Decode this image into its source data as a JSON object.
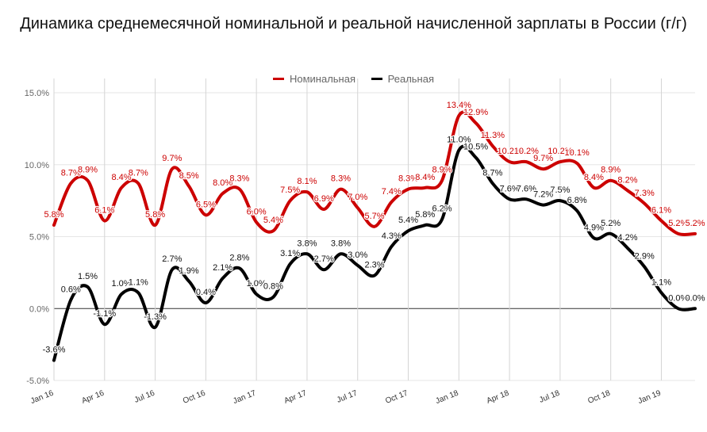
{
  "chart_data": {
    "type": "line",
    "title": "Динамика среднемесячной номинальной и реальной начисленной зарплаты в России (г/г)",
    "xlabel": "",
    "ylabel": "",
    "ylim": [
      -5,
      15
    ],
    "yticks": [
      "15.0%",
      "10.0%",
      "5.0%",
      "0.0%",
      "-5.0%"
    ],
    "ytick_values": [
      15,
      10,
      5,
      0,
      -5
    ],
    "x_tick_labels": [
      "Jan 16",
      "Apr 16",
      "Jul 16",
      "Oct 16",
      "Jan 17",
      "Apr 17",
      "Jul 17",
      "Oct 17",
      "Jan 18",
      "Apr 18",
      "Jul 18",
      "Oct 18",
      "Jan 19"
    ],
    "x_tick_indices": [
      0,
      3,
      6,
      9,
      12,
      15,
      18,
      21,
      24,
      27,
      30,
      33,
      36
    ],
    "grid": true,
    "legend_position": "top",
    "series": [
      {
        "name": "Номинальная",
        "color": "#cc0000",
        "values": [
          5.8,
          8.7,
          8.9,
          6.1,
          8.4,
          8.7,
          5.8,
          9.7,
          8.5,
          6.5,
          8.0,
          8.3,
          6.0,
          5.4,
          7.5,
          8.1,
          6.9,
          8.3,
          7.0,
          5.7,
          7.4,
          8.3,
          8.4,
          8.9,
          13.4,
          12.9,
          11.3,
          10.2,
          10.2,
          9.7,
          10.2,
          10.1,
          8.4,
          8.9,
          8.2,
          7.3,
          6.1,
          5.2,
          5.2
        ],
        "labels": [
          "5.8%",
          "8.7%",
          "8.9%",
          "6.1%",
          "8.4%",
          "8.7%",
          "5.8%",
          "9.7%",
          "8.5%",
          "6.5%",
          "8.0%",
          "8.3%",
          "6.0%",
          "5.4%",
          "7.5%",
          "8.1%",
          "6.9%",
          "8.3%",
          "7.0%",
          "5.7%",
          "7.4%",
          "8.3%",
          "8.4%",
          "8.9%",
          "13.4%",
          "12.9%",
          "11.3%",
          "10.2%",
          "10.2%",
          "9.7%",
          "10.2%",
          "10.1%",
          "8.4%",
          "8.9%",
          "8.2%",
          "7.3%",
          "6.1%",
          "5.2%",
          "5.2%"
        ]
      },
      {
        "name": "Реальная",
        "color": "#000000",
        "values": [
          -3.6,
          0.6,
          1.5,
          -1.1,
          1.0,
          1.1,
          -1.3,
          2.7,
          1.9,
          0.4,
          2.1,
          2.8,
          1.0,
          0.8,
          3.1,
          3.8,
          2.7,
          3.8,
          3.0,
          2.3,
          4.3,
          5.4,
          5.8,
          6.2,
          11.0,
          10.5,
          8.7,
          7.6,
          7.6,
          7.2,
          7.5,
          6.8,
          4.9,
          5.2,
          4.2,
          2.9,
          1.1,
          0.0,
          0.0
        ],
        "labels": [
          "-3.6%",
          "0.6%",
          "1.5%",
          "-1.1%",
          "1.0%",
          "1.1%",
          "-1.3%",
          "2.7%",
          "1.9%",
          "0.4%",
          "2.1%",
          "2.8%",
          "1.0%",
          "0.8%",
          "3.1%",
          "3.8%",
          "2.7%",
          "3.8%",
          "3.0%",
          "2.3%",
          "4.3%",
          "5.4%",
          "5.8%",
          "6.2%",
          "11.0%",
          "10.5%",
          "8.7%",
          "7.6%",
          "7.6%",
          "7.2%",
          "7.5%",
          "6.8%",
          "4.9%",
          "5.2%",
          "4.2%",
          "2.9%",
          "1.1%",
          "0.0%",
          "0.0%"
        ]
      }
    ]
  }
}
